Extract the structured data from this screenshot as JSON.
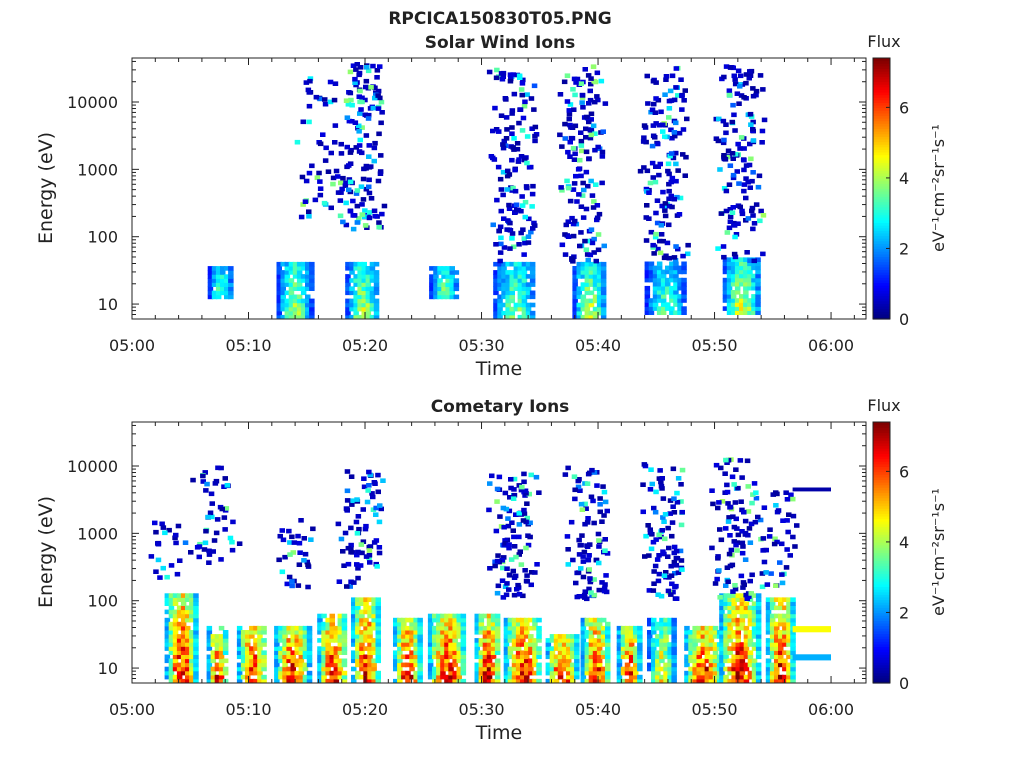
{
  "figure_title": "RPCICA150830T05.PNG",
  "colors": {
    "colormap": "jet",
    "axis": "#222222",
    "background": "#ffffff"
  },
  "chart_data": [
    {
      "type": "heatmap",
      "title": "Solar Wind Ions",
      "xlabel": "Time",
      "ylabel": "Energy (eV)",
      "x_ticks": [
        "05:00",
        "05:10",
        "05:20",
        "05:30",
        "05:40",
        "05:50",
        "06:00"
      ],
      "x_range_minutes": [
        0,
        63
      ],
      "y_scale": "log",
      "y_range": [
        6,
        45000
      ],
      "y_ticks": [
        "10",
        "100",
        "1000",
        "10000"
      ],
      "y_tick_values": [
        10,
        100,
        1000,
        10000
      ],
      "colorbar": {
        "label_top": "Flux",
        "label": "eV⁻¹cm⁻²sr⁻¹s⁻¹",
        "range": [
          0,
          7.4
        ],
        "ticks": [
          "0",
          "2",
          "4",
          "6"
        ],
        "tick_values": [
          0,
          2,
          4,
          6
        ]
      },
      "low_energy_bursts": [
        {
          "start": 6.5,
          "end": 8.5,
          "emin": 12,
          "emax": 35,
          "peak": 3.6
        },
        {
          "start": 12.4,
          "end": 15.2,
          "emin": 6,
          "emax": 40,
          "peak": 4.2
        },
        {
          "start": 18.3,
          "end": 21.0,
          "emin": 6,
          "emax": 40,
          "peak": 4.4
        },
        {
          "start": 25.5,
          "end": 27.8,
          "emin": 12,
          "emax": 35,
          "peak": 3.8
        },
        {
          "start": 31.0,
          "end": 34.5,
          "emin": 6,
          "emax": 40,
          "peak": 4.0
        },
        {
          "start": 37.8,
          "end": 40.5,
          "emin": 6,
          "emax": 40,
          "peak": 4.4
        },
        {
          "start": 44.0,
          "end": 47.3,
          "emin": 7,
          "emax": 40,
          "peak": 3.6
        },
        {
          "start": 50.7,
          "end": 53.7,
          "emin": 7,
          "emax": 45,
          "peak": 4.6
        }
      ],
      "high_energy_columns": [
        {
          "center": 16.0,
          "emin": 150,
          "emax": 25000,
          "density": 0.35
        },
        {
          "center": 19.5,
          "emin": 120,
          "emax": 35000,
          "density": 0.9
        },
        {
          "center": 32.5,
          "emin": 40,
          "emax": 30000,
          "density": 0.9
        },
        {
          "center": 38.5,
          "emin": 40,
          "emax": 32000,
          "density": 0.95
        },
        {
          "center": 45.5,
          "emin": 40,
          "emax": 30000,
          "density": 0.9
        },
        {
          "center": 52.0,
          "emin": 40,
          "emax": 35000,
          "density": 0.9
        }
      ]
    },
    {
      "type": "heatmap",
      "title": "Cometary Ions",
      "xlabel": "Time",
      "ylabel": "Energy (eV)",
      "x_ticks": [
        "05:00",
        "05:10",
        "05:20",
        "05:30",
        "05:40",
        "05:50",
        "06:00"
      ],
      "x_range_minutes": [
        0,
        63
      ],
      "y_scale": "log",
      "y_range": [
        6,
        45000
      ],
      "y_ticks": [
        "10",
        "100",
        "1000",
        "10000"
      ],
      "y_tick_values": [
        10,
        100,
        1000,
        10000
      ],
      "colorbar": {
        "label_top": "Flux",
        "label": "eV⁻¹cm⁻²sr⁻¹s⁻¹",
        "range": [
          0,
          7.4
        ],
        "ticks": [
          "0",
          "2",
          "4",
          "6"
        ],
        "tick_values": [
          0,
          2,
          4,
          6
        ]
      },
      "low_energy_bursts": [
        {
          "start": 2.8,
          "end": 5.3,
          "emin": 6,
          "emax": 120,
          "peak": 7.0
        },
        {
          "start": 6.4,
          "end": 8.0,
          "emin": 6,
          "emax": 40,
          "peak": 6.6
        },
        {
          "start": 9.0,
          "end": 11.4,
          "emin": 6,
          "emax": 40,
          "peak": 7.0
        },
        {
          "start": 12.2,
          "end": 15.0,
          "emin": 6,
          "emax": 40,
          "peak": 7.0
        },
        {
          "start": 15.9,
          "end": 18.3,
          "emin": 6,
          "emax": 60,
          "peak": 7.0
        },
        {
          "start": 18.8,
          "end": 21.0,
          "emin": 6,
          "emax": 100,
          "peak": 7.0
        },
        {
          "start": 22.4,
          "end": 24.6,
          "emin": 6,
          "emax": 50,
          "peak": 7.0
        },
        {
          "start": 25.4,
          "end": 28.4,
          "emin": 6,
          "emax": 60,
          "peak": 7.0
        },
        {
          "start": 29.4,
          "end": 31.4,
          "emin": 6,
          "emax": 60,
          "peak": 7.0
        },
        {
          "start": 31.9,
          "end": 35.0,
          "emin": 6,
          "emax": 50,
          "peak": 7.0
        },
        {
          "start": 35.5,
          "end": 38.0,
          "emin": 6,
          "emax": 30,
          "peak": 7.0
        },
        {
          "start": 38.5,
          "end": 40.8,
          "emin": 6,
          "emax": 50,
          "peak": 6.8
        },
        {
          "start": 41.6,
          "end": 43.4,
          "emin": 6,
          "emax": 40,
          "peak": 6.8
        },
        {
          "start": 44.2,
          "end": 46.4,
          "emin": 6,
          "emax": 50,
          "peak": 5.0
        },
        {
          "start": 47.4,
          "end": 50.4,
          "emin": 6,
          "emax": 40,
          "peak": 7.0
        },
        {
          "start": 50.4,
          "end": 53.6,
          "emin": 6,
          "emax": 120,
          "peak": 7.0
        },
        {
          "start": 54.4,
          "end": 56.6,
          "emin": 6,
          "emax": 100,
          "peak": 7.0
        }
      ],
      "high_energy_columns": [
        {
          "center": 3.0,
          "emin": 200,
          "emax": 1500,
          "density": 0.15
        },
        {
          "center": 7.0,
          "emin": 300,
          "emax": 9000,
          "density": 0.3
        },
        {
          "center": 14.0,
          "emin": 150,
          "emax": 1500,
          "density": 0.2
        },
        {
          "center": 19.5,
          "emin": 150,
          "emax": 8000,
          "density": 0.5
        },
        {
          "center": 32.5,
          "emin": 100,
          "emax": 8000,
          "density": 0.7
        },
        {
          "center": 39.0,
          "emin": 100,
          "emax": 9000,
          "density": 0.6
        },
        {
          "center": 45.5,
          "emin": 100,
          "emax": 10000,
          "density": 0.6
        },
        {
          "center": 51.5,
          "emin": 100,
          "emax": 12000,
          "density": 0.6
        },
        {
          "center": 55.0,
          "emin": 150,
          "emax": 4000,
          "density": 0.3
        }
      ],
      "steady_bands": [
        {
          "start": 56.7,
          "end": 60.0,
          "emin": 4200,
          "emax": 4800,
          "value": 0.3
        },
        {
          "start": 56.7,
          "end": 60.0,
          "emin": 34,
          "emax": 42,
          "value": 4.6
        },
        {
          "start": 56.7,
          "end": 60.0,
          "emin": 13,
          "emax": 16,
          "value": 2.2
        }
      ]
    }
  ]
}
